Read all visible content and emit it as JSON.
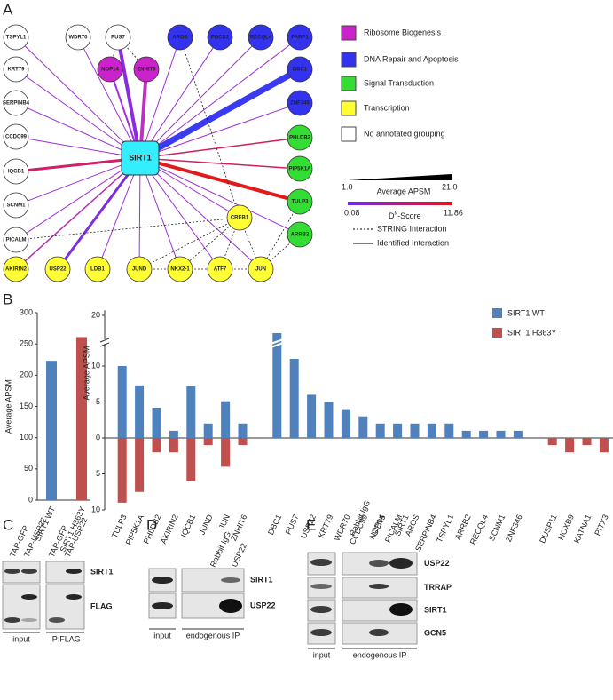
{
  "panels": {
    "a": "A",
    "b": "B",
    "c": "C",
    "d": "D",
    "e": "E"
  },
  "network": {
    "center": "SIRT1",
    "nodes": [
      {
        "label": "TSPYL1",
        "color": "#ffffff"
      },
      {
        "label": "WDR70",
        "color": "#ffffff"
      },
      {
        "label": "PUS7",
        "color": "#ffffff"
      },
      {
        "label": "AROS",
        "color": "#3333ee"
      },
      {
        "label": "PDCD2",
        "color": "#3333ee"
      },
      {
        "label": "RECQL4",
        "color": "#3333ee"
      },
      {
        "label": "PARP1",
        "color": "#3333ee"
      },
      {
        "label": "NOP14",
        "color": "#cc22cc"
      },
      {
        "label": "ZNHIT6",
        "color": "#cc22cc"
      },
      {
        "label": "KRT79",
        "color": "#ffffff"
      },
      {
        "label": "SERPINB4",
        "color": "#ffffff"
      },
      {
        "label": "CCDC99",
        "color": "#ffffff"
      },
      {
        "label": "IQCB1",
        "color": "#ffffff"
      },
      {
        "label": "SCNM1",
        "color": "#ffffff"
      },
      {
        "label": "PICALM",
        "color": "#ffffff"
      },
      {
        "label": "DBC1",
        "color": "#3333ee"
      },
      {
        "label": "ZNF346",
        "color": "#3333ee"
      },
      {
        "label": "PHLDB2",
        "color": "#33dd33"
      },
      {
        "label": "PIP5K1A",
        "color": "#33dd33"
      },
      {
        "label": "TULP3",
        "color": "#33dd33"
      },
      {
        "label": "ARRB2",
        "color": "#33dd33"
      },
      {
        "label": "CREB1",
        "color": "#ffff33"
      },
      {
        "label": "AKIRIN2",
        "color": "#ffff33"
      },
      {
        "label": "USP22",
        "color": "#ffff33"
      },
      {
        "label": "LDB1",
        "color": "#ffff33"
      },
      {
        "label": "JUND",
        "color": "#ffff33"
      },
      {
        "label": "NKX2-1",
        "color": "#ffff33"
      },
      {
        "label": "ATF7",
        "color": "#ffff33"
      },
      {
        "label": "JUN",
        "color": "#ffff33"
      }
    ],
    "legend": [
      {
        "name": "Ribosome Biogenesis",
        "color": "#cc22cc"
      },
      {
        "name": "DNA Repair and Apoptosis",
        "color": "#3333ee"
      },
      {
        "name": "Signal Transduction",
        "color": "#33dd33"
      },
      {
        "name": "Transcription",
        "color": "#ffff33"
      },
      {
        "name": "No annotated grouping",
        "color": "#ffffff"
      }
    ],
    "apsm_min": "1.0",
    "apsm_max": "21.0",
    "apsm_label": "Average APSM",
    "dscore_min": "0.08",
    "dscore_max": "11.86",
    "dscore_label": {
      "base": "D",
      "sup": "N",
      "rest": "-Score"
    },
    "string_label": "STRING Interaction",
    "identified_label": "Identified Interaction"
  },
  "chart_data": [
    {
      "type": "bar",
      "ylabel": "Average APSM",
      "categories": [
        "SIRT1 WT",
        "SIRT1 H363Y"
      ],
      "values": [
        223,
        261
      ],
      "colors": [
        "#4f81bd",
        "#c0504d"
      ],
      "ylim": [
        0,
        300
      ],
      "yticks": [
        0,
        50,
        100,
        150,
        200,
        250,
        300
      ]
    },
    {
      "type": "bar",
      "ylabel": "Average APSM",
      "categories": [
        "TULP3",
        "PIP5K1A",
        "PHLDB2",
        "AKIRIN2",
        "IQCB1",
        "JUND",
        "JUN",
        "ZNHIT6",
        null,
        "DBC1",
        "PUS7",
        "USP22",
        "KRT79",
        "WDR70",
        "CCDC99",
        "NOP14",
        "PICALM",
        "AROS",
        "SERPINB4",
        "TSPYL1",
        "ARRB2",
        "RECQL4",
        "SCNM1",
        "ZNF346",
        null,
        "DUSP11",
        "HOXB9",
        "KATNA1",
        "PITX3"
      ],
      "series": [
        {
          "name": "SIRT1 WT",
          "color": "#4f81bd",
          "values": [
            10,
            7.3,
            4.2,
            1,
            7.2,
            2,
            5.1,
            2,
            null,
            16.5,
            11.4,
            6,
            5,
            4,
            3,
            2,
            2,
            2,
            2,
            2,
            1,
            1,
            1,
            1,
            null,
            0,
            0,
            0,
            0
          ]
        },
        {
          "name": "SIRT1 H363Y",
          "color": "#c0504d",
          "values": [
            -9,
            -7.5,
            -2,
            -2,
            -6,
            -1,
            -4,
            -1,
            null,
            0,
            0,
            0,
            0,
            0,
            0,
            0,
            0,
            0,
            0,
            0,
            0,
            0,
            0,
            0,
            null,
            -1,
            -2,
            -1,
            -2
          ]
        }
      ],
      "ylim": [
        -10,
        21
      ],
      "yticks": [
        {
          "value": -10,
          "label": "10"
        },
        {
          "value": -5,
          "label": "5"
        },
        0,
        5,
        10,
        20
      ],
      "axis_break": 10
    }
  ],
  "blots": {
    "c": {
      "lanes": [
        "TAP-GFP",
        "TAP-USP22",
        "TAP-GFP",
        "TAP-USP22"
      ],
      "rows": [
        "SIRT1",
        "FLAG"
      ],
      "groups": [
        "input",
        "IP:FLAG"
      ]
    },
    "d": {
      "lanes": [
        "Rabbit IgG",
        "USP22"
      ],
      "rows": [
        "SIRT1",
        "USP22"
      ],
      "groups": [
        "input",
        "endogenous IP"
      ]
    },
    "e": {
      "lanes": [
        "Rabbit IgG",
        "GCN5",
        "SIRT1"
      ],
      "rows": [
        "USP22",
        "TRRAP",
        "SIRT1",
        "GCN5"
      ],
      "groups": [
        "input",
        "endogenous IP"
      ]
    }
  }
}
